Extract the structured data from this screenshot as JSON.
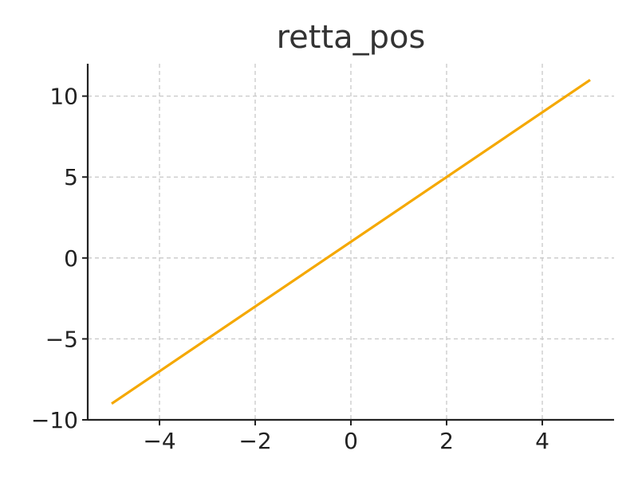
{
  "chart_data": {
    "type": "line",
    "title": "retta_pos",
    "xlabel": "",
    "ylabel": "",
    "x_ticks": [
      -4,
      -2,
      0,
      2,
      4
    ],
    "y_ticks": [
      -10,
      -5,
      0,
      5,
      10
    ],
    "x_tick_labels": [
      "−4",
      "−2",
      "0",
      "2",
      "4"
    ],
    "y_tick_labels": [
      "−10",
      "−5",
      "0",
      "5",
      "10"
    ],
    "xlim": [
      -5.5,
      5.5
    ],
    "ylim": [
      -10,
      12
    ],
    "grid": true,
    "series": [
      {
        "color": "#f5a800",
        "x": [
          -5,
          5
        ],
        "y": [
          -9,
          11
        ]
      }
    ]
  }
}
